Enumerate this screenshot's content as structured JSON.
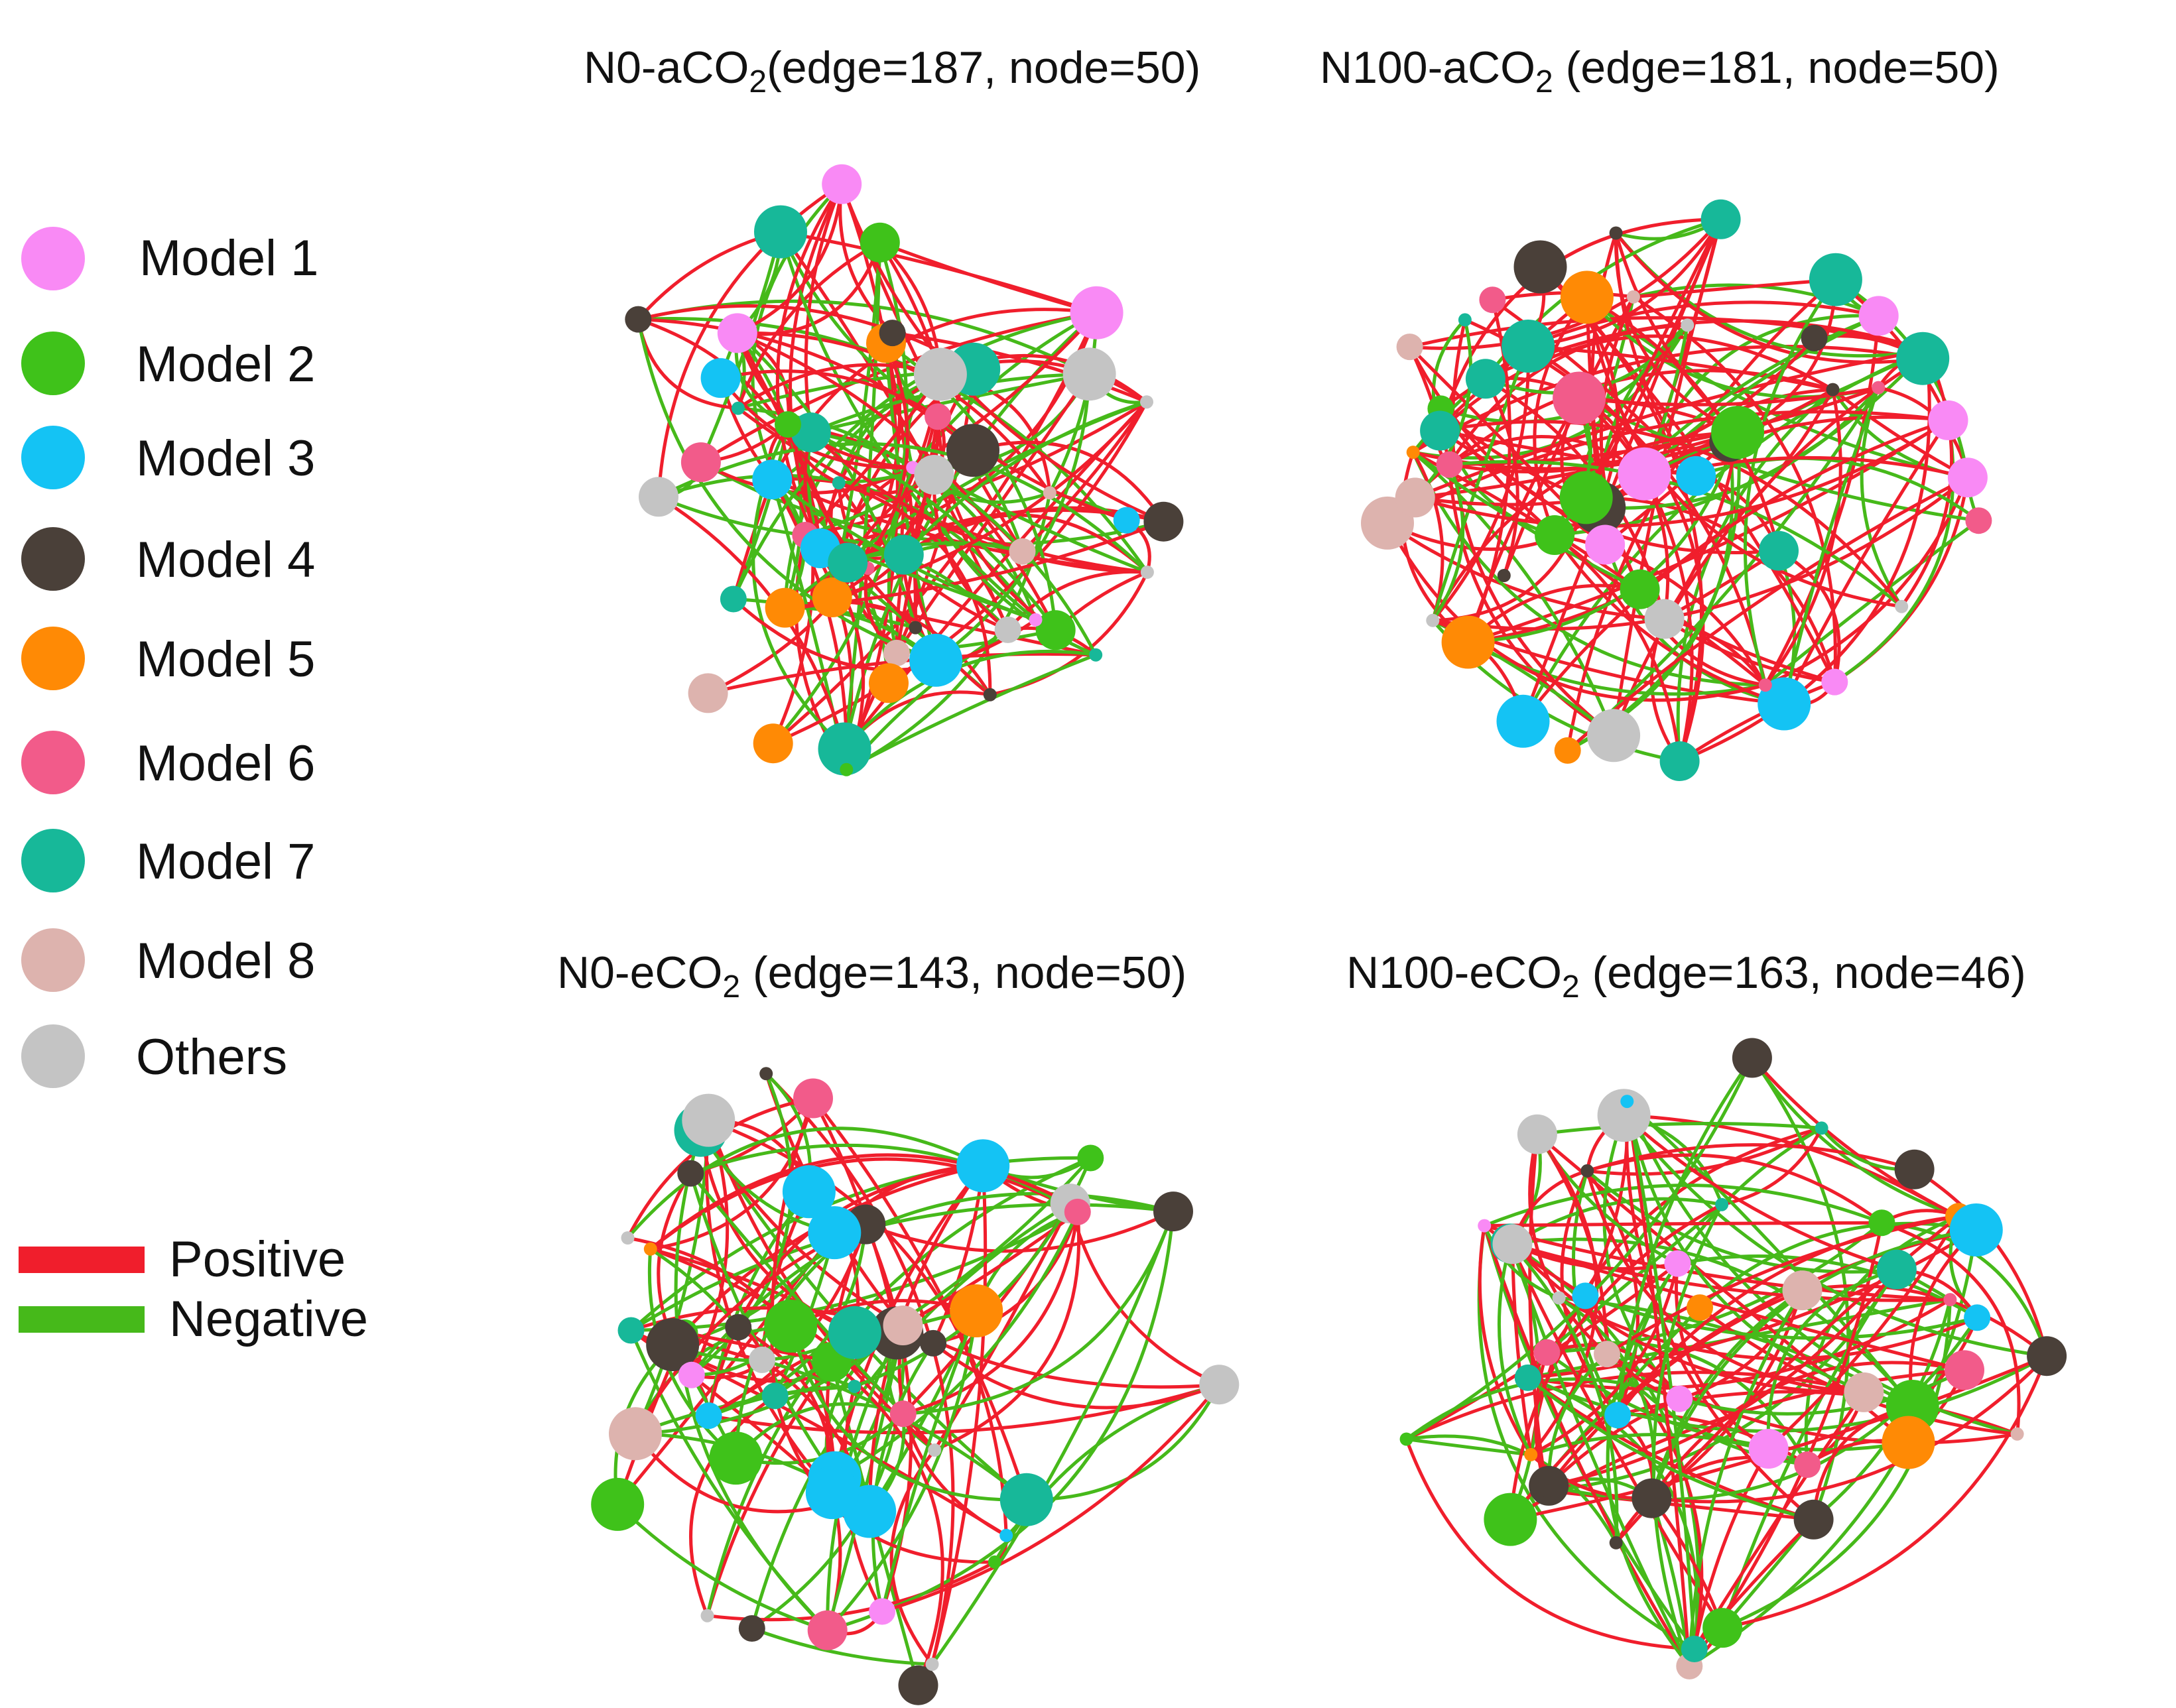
{
  "legend": {
    "models": [
      {
        "label": "Model 1",
        "color": "#f98af5"
      },
      {
        "label": "Model 2",
        "color": "#3fc21a"
      },
      {
        "label": "Model 3",
        "color": "#14c3f4"
      },
      {
        "label": "Model 4",
        "color": "#4a4039"
      },
      {
        "label": "Model 5",
        "color": "#ff8a05"
      },
      {
        "label": "Model 6",
        "color": "#f25b8a"
      },
      {
        "label": "Model 7",
        "color": "#17b899"
      },
      {
        "label": "Model 8",
        "color": "#ddb3ae"
      },
      {
        "label": "Others",
        "color": "#c4c4c4"
      }
    ],
    "edges": [
      {
        "label": "Positive",
        "color": "#f01e2c"
      },
      {
        "label": "Negative",
        "color": "#46b91a"
      }
    ]
  },
  "panels": [
    {
      "prefix": "N0-aCO",
      "sub": "2",
      "suffix": "(edge=187, node=50)",
      "edges": 187,
      "nodes": 50
    },
    {
      "prefix": "N100-aCO",
      "sub": "2",
      "suffix": " (edge=181, node=50)",
      "edges": 181,
      "nodes": 50
    },
    {
      "prefix": "N0-eCO",
      "sub": "2",
      "suffix": " (edge=143, node=50)",
      "edges": 143,
      "nodes": 50
    },
    {
      "prefix": "N100-eCO",
      "sub": "2",
      "suffix": " (edge=163, node=46)",
      "edges": 163,
      "nodes": 46
    }
  ]
}
